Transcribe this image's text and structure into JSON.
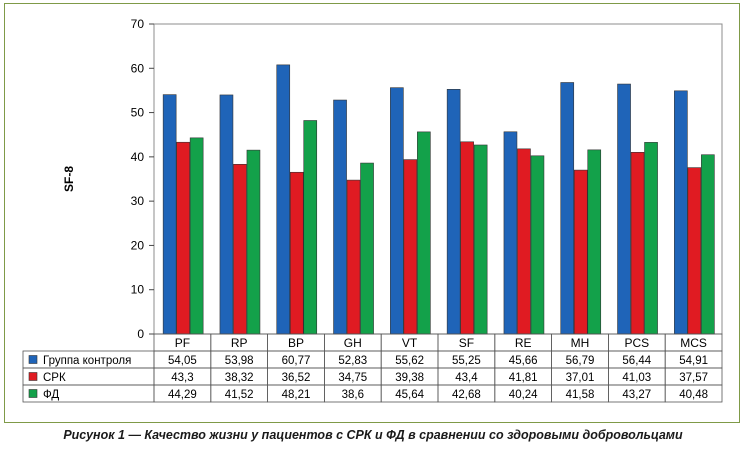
{
  "chart_data": {
    "type": "bar",
    "ylabel": "SF-8",
    "ylim": [
      0,
      70
    ],
    "yticks": [
      0,
      10,
      20,
      30,
      40,
      50,
      60,
      70
    ],
    "grid": false,
    "legend": "table-below",
    "categories": [
      "PF",
      "RP",
      "BP",
      "GH",
      "VT",
      "SF",
      "RE",
      "MH",
      "PCS",
      "MCS"
    ],
    "series": [
      {
        "name": "Группа контроля",
        "color": "#1f64b8",
        "values": [
          54.05,
          53.98,
          60.77,
          52.83,
          55.62,
          55.25,
          45.66,
          56.79,
          56.44,
          54.91
        ],
        "labels": [
          "54,05",
          "53,98",
          "60,77",
          "52,83",
          "55,62",
          "55,25",
          "45,66",
          "56,79",
          "56,44",
          "54,91"
        ]
      },
      {
        "name": "СРК",
        "color": "#e01b22",
        "values": [
          43.3,
          38.32,
          36.52,
          34.75,
          39.38,
          43.4,
          41.81,
          37.01,
          41.03,
          37.57
        ],
        "labels": [
          "43,3",
          "38,32",
          "36,52",
          "34,75",
          "39,38",
          "43,4",
          "41,81",
          "37,01",
          "41,03",
          "37,57"
        ]
      },
      {
        "name": "ФД",
        "color": "#13a14a",
        "values": [
          44.29,
          41.52,
          48.21,
          38.6,
          45.64,
          42.68,
          40.24,
          41.58,
          43.27,
          40.48
        ],
        "labels": [
          "44,29",
          "41,52",
          "48,21",
          "38,6",
          "45,64",
          "42,68",
          "40,24",
          "41,58",
          "43,27",
          "40,48"
        ]
      }
    ]
  },
  "caption": "Рисунок 1 — Качество жизни у пациентов с СРК и ФД в сравнении со здоровыми добровольцами"
}
